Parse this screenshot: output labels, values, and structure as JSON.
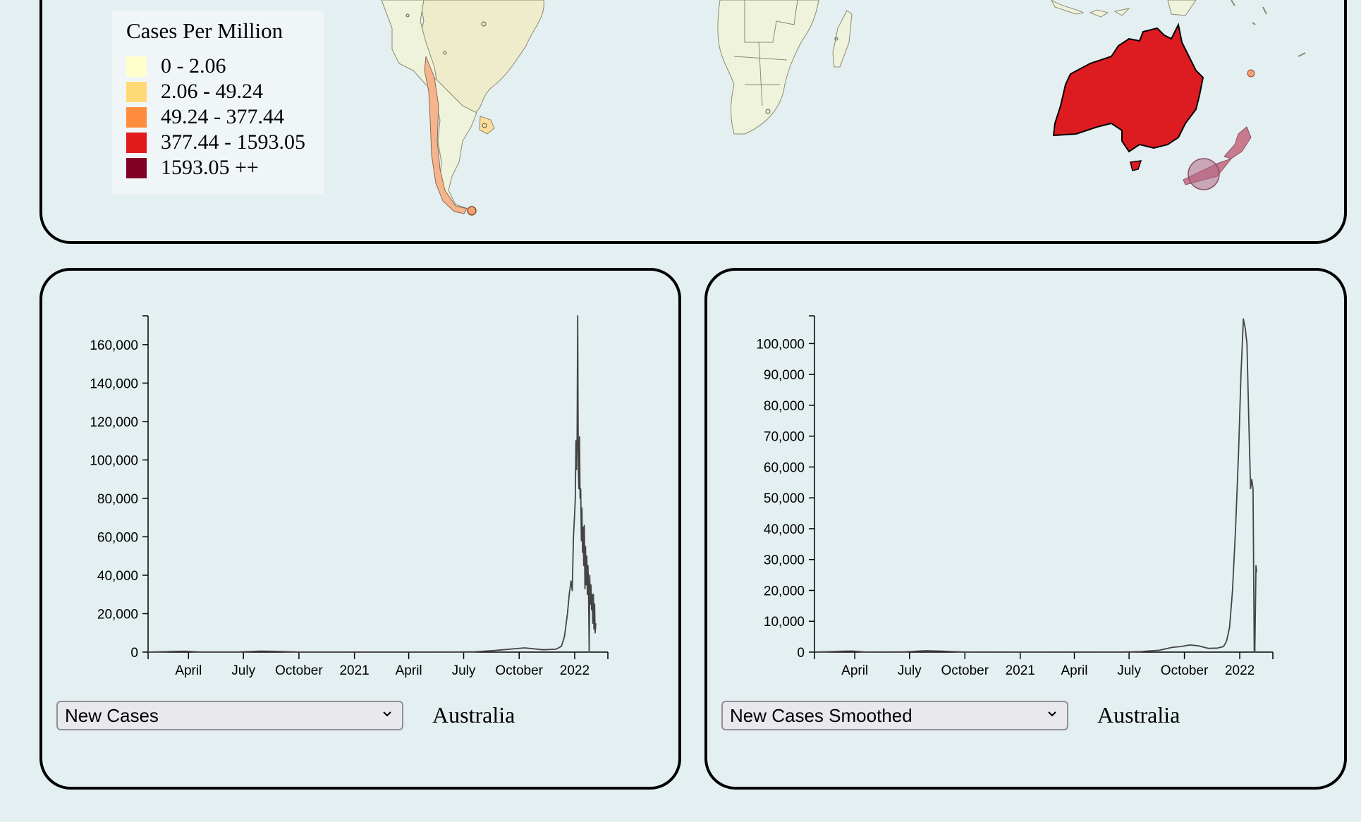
{
  "legend": {
    "title": "Cases Per Million",
    "items": [
      {
        "label": "0 - 2.06",
        "color": "#ffffcc"
      },
      {
        "label": "2.06 - 49.24",
        "color": "#fed976"
      },
      {
        "label": "49.24 - 377.44",
        "color": "#fd8d3c"
      },
      {
        "label": "377.44 - 1593.05",
        "color": "#e31a1c"
      },
      {
        "label": "1593.05 ++",
        "color": "#800026"
      }
    ]
  },
  "colors": {
    "background": "#e4eff1",
    "highlight_country": "#dd1c22",
    "land_light": "#f0f3dc",
    "land_pale": "#eef0cc",
    "chile": "#f5b48c",
    "line": "#444444"
  },
  "left_chart": {
    "selector_value": "New Cases",
    "country": "Australia"
  },
  "right_chart": {
    "selector_value": "New Cases Smoothed",
    "country": "Australia"
  },
  "chart_data": [
    {
      "type": "line",
      "title": "",
      "xlabel": "",
      "ylabel": "",
      "x_tick_labels": [
        "April",
        "July",
        "October",
        "2021",
        "April",
        "July",
        "October",
        "2022"
      ],
      "y_tick_labels": [
        "0",
        "20,000",
        "40,000",
        "60,000",
        "80,000",
        "100,000",
        "120,000",
        "140,000",
        "160,000"
      ],
      "xlim": [
        "2020-01-25",
        "2022-02-25"
      ],
      "ylim": [
        0,
        175000
      ],
      "series": [
        {
          "x": [
            "2020-01-25",
            "2020-03-15",
            "2020-03-28",
            "2020-04-20",
            "2020-06-20",
            "2020-07-28",
            "2020-08-20",
            "2020-10-01",
            "2021-01-01",
            "2021-06-20",
            "2021-07-20",
            "2021-08-20",
            "2021-09-15",
            "2021-10-10",
            "2021-11-10",
            "2021-12-01",
            "2021-12-10",
            "2021-12-15",
            "2021-12-20",
            "2021-12-23",
            "2021-12-26",
            "2021-12-28",
            "2021-12-30",
            "2022-01-01",
            "2022-01-02",
            "2022-01-03",
            "2022-01-04",
            "2022-01-05",
            "2022-01-06",
            "2022-01-07",
            "2022-01-08",
            "2022-01-09",
            "2022-01-10",
            "2022-01-11",
            "2022-01-12",
            "2022-01-13",
            "2022-01-14",
            "2022-01-15",
            "2022-01-16",
            "2022-01-17",
            "2022-01-18",
            "2022-01-19",
            "2022-01-20",
            "2022-01-21",
            "2022-01-22",
            "2022-01-23",
            "2022-01-24",
            "2022-01-25",
            "2022-01-26",
            "2022-01-27",
            "2022-01-28",
            "2022-01-29",
            "2022-01-30",
            "2022-01-31",
            "2022-02-01",
            "2022-02-02",
            "2022-02-03",
            "2022-02-04",
            "2022-02-05"
          ],
          "y": [
            0,
            400,
            450,
            30,
            50,
            500,
            400,
            20,
            10,
            20,
            200,
            800,
            1500,
            2200,
            1200,
            1500,
            3000,
            8000,
            20000,
            30000,
            37000,
            32000,
            60000,
            72000,
            80000,
            110000,
            95000,
            112000,
            175000,
            95000,
            85000,
            112000,
            80000,
            85000,
            58000,
            75000,
            52000,
            65000,
            45000,
            66000,
            33000,
            55000,
            35000,
            50000,
            30000,
            45000,
            32000,
            0,
            40000,
            25000,
            35000,
            22000,
            30000,
            15000,
            30000,
            12000,
            25000,
            10000,
            15000
          ]
        }
      ]
    },
    {
      "type": "line",
      "title": "",
      "xlabel": "",
      "ylabel": "",
      "x_tick_labels": [
        "April",
        "July",
        "October",
        "2021",
        "April",
        "July",
        "October",
        "2022"
      ],
      "y_tick_labels": [
        "0",
        "10,000",
        "20,000",
        "30,000",
        "40,000",
        "50,000",
        "60,000",
        "70,000",
        "80,000",
        "90,000",
        "100,000"
      ],
      "xlim": [
        "2020-01-25",
        "2022-02-25"
      ],
      "ylim": [
        0,
        109000
      ],
      "series": [
        {
          "x": [
            "2020-01-25",
            "2020-03-15",
            "2020-03-28",
            "2020-04-20",
            "2020-06-20",
            "2020-07-28",
            "2020-08-20",
            "2020-10-01",
            "2021-01-01",
            "2021-06-20",
            "2021-07-20",
            "2021-08-20",
            "2021-09-10",
            "2021-09-25",
            "2021-10-10",
            "2021-10-25",
            "2021-11-10",
            "2021-11-25",
            "2021-12-05",
            "2021-12-10",
            "2021-12-15",
            "2021-12-20",
            "2021-12-25",
            "2021-12-30",
            "2022-01-03",
            "2022-01-07",
            "2022-01-10",
            "2022-01-13",
            "2022-01-16",
            "2022-01-19",
            "2022-01-21",
            "2022-01-23",
            "2022-01-25",
            "2022-01-26",
            "2022-01-28",
            "2022-01-29"
          ],
          "y": [
            0,
            300,
            350,
            30,
            40,
            450,
            350,
            20,
            10,
            20,
            150,
            600,
            1500,
            1800,
            2300,
            2000,
            1200,
            1300,
            1800,
            3500,
            8000,
            20000,
            40000,
            65000,
            90000,
            108000,
            105000,
            100000,
            75000,
            53000,
            56000,
            53000,
            0,
            0,
            28000,
            26000
          ]
        }
      ]
    }
  ]
}
